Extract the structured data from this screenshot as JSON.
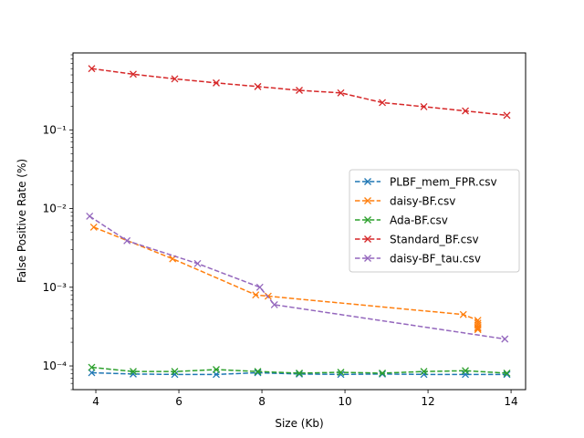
{
  "chart_data": {
    "type": "line",
    "title": "",
    "xlabel": "Size (Kb)",
    "ylabel": "False Positive Rate (%)",
    "xlim": [
      3.45,
      14.35
    ],
    "ylim": [
      5e-05,
      0.95
    ],
    "yscale": "log",
    "grid": false,
    "legend_position": "center-right",
    "xticks": [
      4,
      6,
      8,
      10,
      12,
      14
    ],
    "xtick_labels": [
      "4",
      "6",
      "8",
      "10",
      "12",
      "14"
    ],
    "yticks": [
      0.0001,
      0.001,
      0.01,
      0.1
    ],
    "ytick_labels": [
      "10⁻⁴",
      "10⁻³",
      "10⁻²",
      "10⁻¹"
    ],
    "series": [
      {
        "name": "PLBF_mem_FPR.csv",
        "color": "#1f77b4",
        "marker": "x",
        "x": [
          3.9,
          4.9,
          5.9,
          6.9,
          7.9,
          8.9,
          9.9,
          10.9,
          11.9,
          12.9,
          13.9
        ],
        "y": [
          8.2e-05,
          7.9e-05,
          7.8e-05,
          7.8e-05,
          8.2e-05,
          7.9e-05,
          7.8e-05,
          7.9e-05,
          7.8e-05,
          7.8e-05,
          7.8e-05
        ]
      },
      {
        "name": "daisy-BF.csv",
        "color": "#ff7f0e",
        "marker": "x",
        "x": [
          3.95,
          5.85,
          7.85,
          8.15,
          12.85,
          13.2,
          13.2,
          13.2,
          13.2,
          13.2,
          13.2
        ],
        "y": [
          0.0058,
          0.0023,
          0.0008,
          0.00077,
          0.00045,
          0.00038,
          0.00035,
          0.00033,
          0.00031,
          0.0003,
          0.00029
        ]
      },
      {
        "name": "Ada-BF.csv",
        "color": "#2ca02c",
        "marker": "x",
        "x": [
          3.9,
          4.9,
          5.9,
          6.9,
          7.9,
          8.9,
          9.9,
          10.9,
          11.9,
          12.9,
          13.9
        ],
        "y": [
          9.6e-05,
          8.5e-05,
          8.5e-05,
          9e-05,
          8.5e-05,
          8.1e-05,
          8.3e-05,
          8.1e-05,
          8.5e-05,
          8.7e-05,
          8.1e-05
        ]
      },
      {
        "name": "Standard_BF.csv",
        "color": "#d62728",
        "marker": "x",
        "x": [
          3.9,
          4.9,
          5.9,
          6.9,
          7.9,
          8.9,
          9.9,
          10.9,
          11.9,
          12.9,
          13.9
        ],
        "y": [
          0.6,
          0.51,
          0.445,
          0.395,
          0.355,
          0.318,
          0.295,
          0.222,
          0.197,
          0.174,
          0.153
        ]
      },
      {
        "name": "daisy-BF_tau.csv",
        "color": "#9467bd",
        "marker": "x",
        "x": [
          3.85,
          4.75,
          6.45,
          7.95,
          8.3,
          13.85
        ],
        "y": [
          0.008,
          0.0039,
          0.002,
          0.001,
          0.0006,
          0.00022
        ]
      }
    ]
  }
}
